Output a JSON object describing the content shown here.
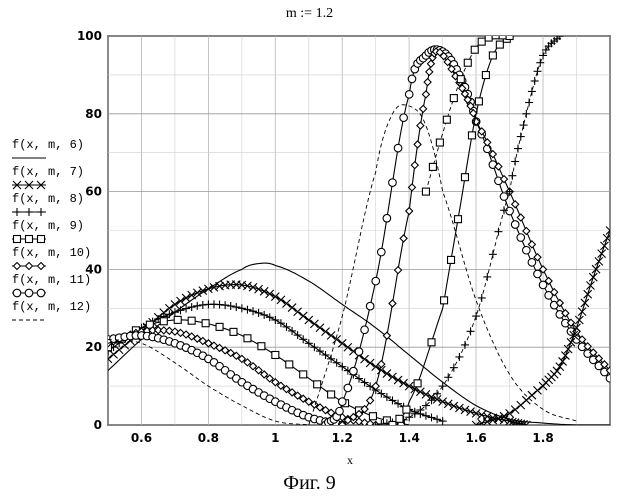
{
  "header": {
    "title": "m  :=  1.2"
  },
  "caption": "Фиг. 9",
  "chart_data": {
    "type": "line",
    "title": "",
    "xlabel": "x",
    "ylabel": "",
    "xlim": [
      0.5,
      2.0
    ],
    "ylim": [
      0,
      100
    ],
    "x_ticks": [
      "0.6",
      "0.8",
      "1",
      "1.2",
      "1.4",
      "1.6",
      "1.8"
    ],
    "y_ticks": [
      "0",
      "20",
      "40",
      "60",
      "80",
      "100"
    ],
    "grid": true,
    "legend_position": "left",
    "series": [
      {
        "name": "f(x, m, 6)",
        "marker": "none",
        "color": "#000000",
        "x": [
          0.5,
          0.6,
          0.7,
          0.8,
          0.9,
          0.95,
          1.0,
          1.1,
          1.2,
          1.3,
          1.4,
          1.5,
          1.6,
          1.7,
          1.8,
          1.9,
          2.0
        ],
        "y": [
          14,
          22,
          29,
          35,
          40,
          41.5,
          41,
          37,
          31,
          25,
          18,
          11,
          5,
          1.5,
          0.5,
          0,
          0
        ]
      },
      {
        "name": "f(x, m, 7)",
        "marker": "x",
        "color": "#000000",
        "x": [
          0.5,
          0.6,
          0.7,
          0.8,
          0.9,
          1.0,
          1.1,
          1.2,
          1.3,
          1.4,
          1.5,
          1.6,
          1.7,
          1.75
        ],
        "y": [
          17,
          24,
          31,
          35,
          36,
          33,
          27,
          21,
          15,
          10,
          6,
          3,
          1,
          0
        ]
      },
      {
        "name": "f(x, m, 8)",
        "marker": "plus",
        "color": "#000000",
        "x": [
          0.5,
          0.6,
          0.7,
          0.8,
          0.9,
          1.0,
          1.1,
          1.2,
          1.3,
          1.4,
          1.5
        ],
        "y": [
          19,
          25,
          29,
          31,
          30,
          27,
          21,
          15,
          9,
          4,
          1
        ]
      },
      {
        "name": "f(x, m, 9)",
        "marker": "square",
        "color": "#000000",
        "x": [
          0.5,
          0.6,
          0.7,
          0.8,
          0.9,
          1.0,
          1.1,
          1.2,
          1.3,
          1.4
        ],
        "y": [
          20,
          25,
          27,
          26,
          23,
          18,
          12,
          6,
          2,
          0
        ]
      },
      {
        "name": "f(x, m, 10)",
        "marker": "diamond",
        "color": "#000000",
        "x": [
          0.5,
          0.6,
          0.7,
          0.8,
          0.9,
          1.0,
          1.1,
          1.2,
          1.3
        ],
        "y": [
          21,
          24,
          24,
          21,
          17,
          11,
          6,
          2,
          0
        ]
      },
      {
        "name": "f(x, m, 11)",
        "marker": "circle",
        "color": "#000000",
        "x": [
          0.5,
          0.6,
          0.7,
          0.8,
          0.9,
          1.0,
          1.1,
          1.2
        ],
        "y": [
          22,
          23,
          21,
          17,
          11,
          6,
          2,
          0
        ]
      },
      {
        "name": "f(x, m, 12)",
        "marker": "none-dashed",
        "color": "#000000",
        "x": [
          0.5,
          0.6,
          0.7,
          0.8,
          0.9,
          1.0,
          1.1
        ],
        "y": [
          22,
          21,
          16,
          10,
          5,
          1,
          0
        ]
      },
      {
        "name": "",
        "marker": "none-dashed",
        "color": "#000000",
        "x": [
          1.1,
          1.2,
          1.3,
          1.35,
          1.4,
          1.45,
          1.5,
          1.6,
          1.7,
          1.8,
          1.9
        ],
        "y": [
          0,
          28,
          65,
          80,
          82,
          77,
          60,
          32,
          13,
          4,
          1
        ]
      },
      {
        "name": "",
        "marker": "circle",
        "color": "#000000",
        "x": [
          1.15,
          1.2,
          1.3,
          1.4,
          1.45,
          1.5,
          1.55,
          1.6,
          1.7,
          1.8,
          1.9,
          2.0
        ],
        "y": [
          0,
          6,
          37,
          85,
          95,
          96,
          90,
          78,
          55,
          36,
          22,
          12
        ]
      },
      {
        "name": "",
        "marker": "diamond",
        "color": "#000000",
        "x": [
          1.2,
          1.3,
          1.4,
          1.45,
          1.48,
          1.55,
          1.6,
          1.7,
          1.8,
          1.9,
          2.0
        ],
        "y": [
          0,
          10,
          55,
          85,
          96,
          88,
          78,
          60,
          40,
          24,
          14
        ]
      },
      {
        "name": "",
        "marker": "plus-dashed",
        "color": "#000000",
        "x": [
          1.3,
          1.4,
          1.5,
          1.6,
          1.7,
          1.75,
          1.8,
          1.85
        ],
        "y": [
          0,
          2,
          10,
          28,
          60,
          80,
          95,
          100
        ]
      },
      {
        "name": "",
        "marker": "square",
        "color": "#000000",
        "x": [
          1.35,
          1.4,
          1.5,
          1.55,
          1.6,
          1.65,
          1.7
        ],
        "y": [
          0,
          6,
          30,
          55,
          80,
          95,
          100
        ]
      },
      {
        "name": "",
        "marker": "x",
        "color": "#000000",
        "x": [
          1.6,
          1.7,
          1.8,
          1.85,
          1.9,
          1.95,
          2.0
        ],
        "y": [
          0,
          3,
          10,
          15,
          25,
          38,
          50
        ]
      },
      {
        "name": "",
        "marker": "square-dashed",
        "color": "#000000",
        "x": [
          1.45,
          1.5,
          1.55,
          1.6,
          1.65,
          1.7
        ],
        "y": [
          60,
          75,
          88,
          97,
          100,
          100
        ]
      }
    ]
  }
}
